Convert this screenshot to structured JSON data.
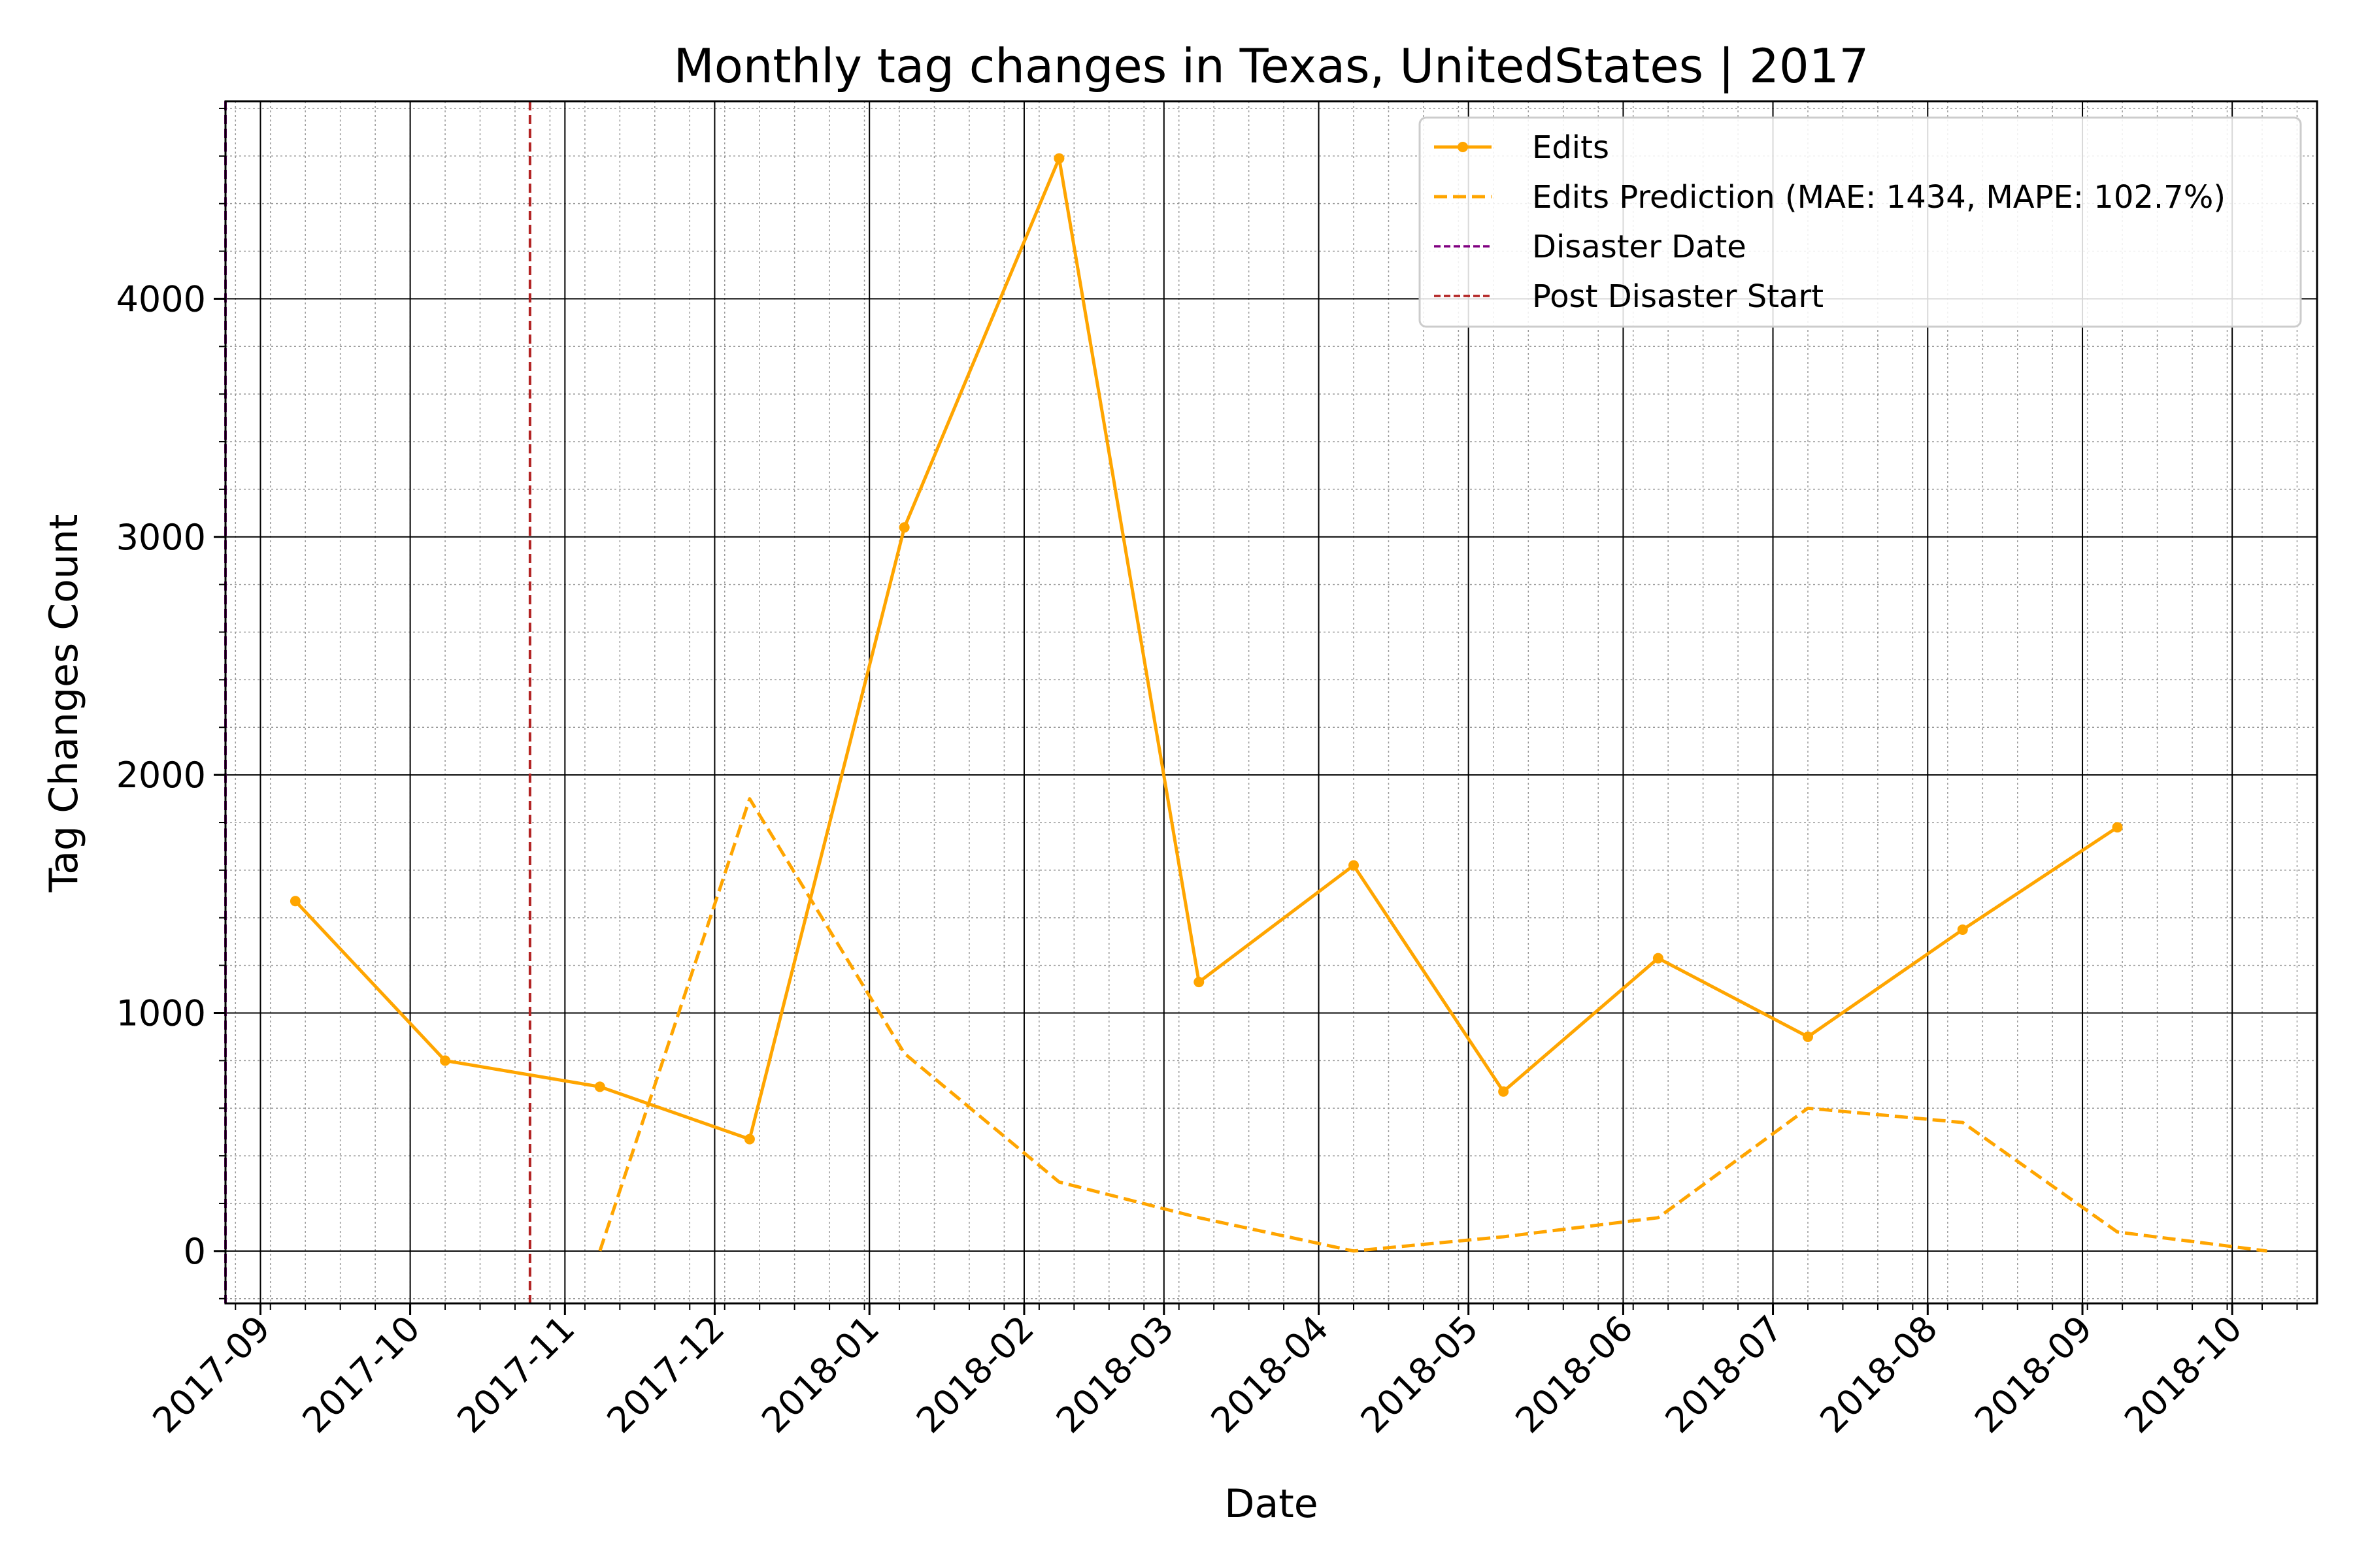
{
  "chart_data": {
    "type": "line",
    "title": "Monthly tag changes in Texas, UnitedStates | 2017",
    "xlabel": "Date",
    "ylabel": "Tag Changes Count",
    "x_axis": {
      "type": "date",
      "range": [
        "2017-08-25",
        "2018-10-18"
      ],
      "ticks": [
        "2017-09",
        "2017-10",
        "2017-11",
        "2017-12",
        "2018-01",
        "2018-02",
        "2018-03",
        "2018-04",
        "2018-05",
        "2018-06",
        "2018-07",
        "2018-08",
        "2018-09",
        "2018-10"
      ],
      "minor_ticks": "weekly",
      "tick_rotation": 45
    },
    "y_axis": {
      "range": [
        -220,
        4830
      ],
      "ticks": [
        0,
        1000,
        2000,
        3000,
        4000
      ],
      "minor_step": 200
    },
    "grid": true,
    "legend_position": "top-right",
    "series": [
      {
        "name": "Edits",
        "color": "#ffa500",
        "style": "solid",
        "marker": "circle",
        "x": [
          "2017-09-08",
          "2017-10-08",
          "2017-11-08",
          "2017-12-08",
          "2018-01-08",
          "2018-02-08",
          "2018-03-08",
          "2018-04-08",
          "2018-05-08",
          "2018-06-08",
          "2018-07-08",
          "2018-08-08",
          "2018-09-08"
        ],
        "values": [
          1470,
          800,
          690,
          470,
          3040,
          4590,
          1130,
          1620,
          670,
          1230,
          900,
          1350,
          1780
        ]
      },
      {
        "name": "Edits Prediction (MAE: 1434, MAPE: 102.7%)",
        "color": "#ffa500",
        "style": "dashed",
        "marker": "none",
        "x": [
          "2017-11-08",
          "2017-12-08",
          "2018-01-08",
          "2018-02-08",
          "2018-03-08",
          "2018-04-08",
          "2018-05-08",
          "2018-06-08",
          "2018-07-08",
          "2018-08-08",
          "2018-09-08",
          "2018-10-08"
        ],
        "values": [
          0,
          1900,
          830,
          290,
          140,
          0,
          60,
          140,
          600,
          540,
          80,
          0
        ]
      }
    ],
    "vlines": [
      {
        "name": "Disaster Date",
        "x": "2017-08-25",
        "color": "#800080",
        "style": "dashed"
      },
      {
        "name": "Post Disaster Start",
        "x": "2017-10-25",
        "color": "#b22222",
        "style": "dashed"
      }
    ]
  }
}
